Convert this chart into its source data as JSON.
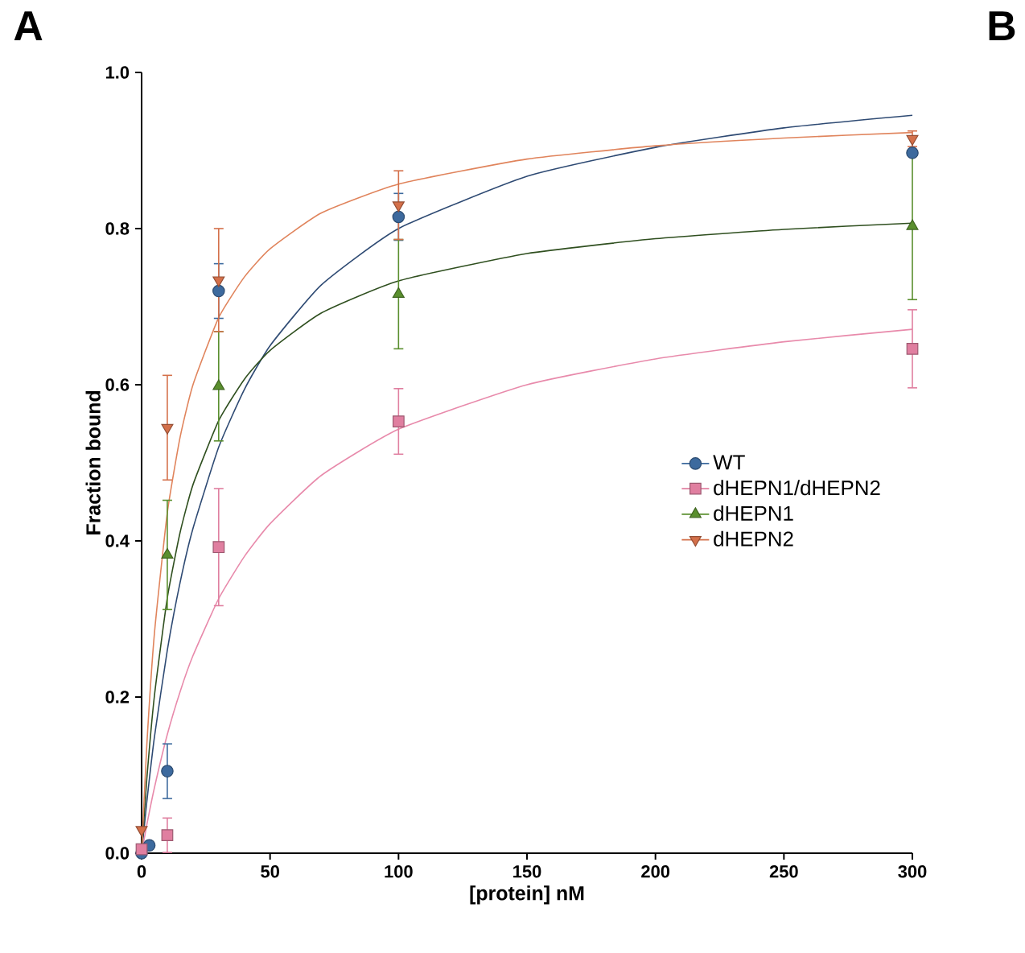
{
  "chart_data": {
    "type": "scatter",
    "xlabel": "[protein] nM",
    "ylabel": "Fraction bound",
    "xlim": [
      0,
      300
    ],
    "ylim": [
      0,
      1
    ],
    "xticks": [
      0,
      50,
      100,
      150,
      200,
      250,
      300
    ],
    "yticks": [
      {
        "value": 0,
        "label": "0.0"
      },
      {
        "value": 0.2,
        "label": "0.2"
      },
      {
        "value": 0.4,
        "label": "0.4"
      },
      {
        "value": 0.6,
        "label": "0.6"
      },
      {
        "value": 0.8,
        "label": "0.8"
      },
      {
        "value": 1,
        "label": "1.0"
      }
    ],
    "legend": "right",
    "annotations": [
      "A",
      "B"
    ],
    "series": [
      {
        "type": "line",
        "color": "#2e4a73",
        "marker": "none",
        "x": [
          0,
          2,
          5,
          10,
          15,
          20,
          30,
          40,
          50,
          70,
          100,
          150,
          200,
          250,
          300
        ],
        "values": [
          0,
          0.065,
          0.149,
          0.26,
          0.347,
          0.416,
          0.52,
          0.594,
          0.65,
          0.728,
          0.8,
          0.867,
          0.904,
          0.929,
          0.945
        ]
      },
      {
        "type": "line",
        "color": "#e88aab",
        "marker": "none",
        "x": [
          0,
          2,
          5,
          10,
          15,
          20,
          30,
          40,
          50,
          70,
          100,
          150,
          200,
          250,
          300
        ],
        "values": [
          0,
          0.036,
          0.084,
          0.152,
          0.207,
          0.253,
          0.326,
          0.38,
          0.422,
          0.484,
          0.543,
          0.6,
          0.633,
          0.655,
          0.671
        ]
      },
      {
        "type": "line",
        "color": "#2f4f1f",
        "marker": "none",
        "x": [
          0,
          2,
          5,
          10,
          15,
          20,
          30,
          40,
          50,
          70,
          100,
          150,
          200,
          250,
          300
        ],
        "values": [
          0,
          0.094,
          0.202,
          0.327,
          0.411,
          0.472,
          0.554,
          0.607,
          0.644,
          0.692,
          0.733,
          0.768,
          0.787,
          0.799,
          0.807
        ]
      },
      {
        "type": "line",
        "color": "#e0845c",
        "marker": "none",
        "x": [
          0,
          2,
          5,
          10,
          15,
          20,
          30,
          40,
          50,
          70,
          100,
          150,
          200,
          250,
          300
        ],
        "values": [
          0,
          0.137,
          0.282,
          0.436,
          0.533,
          0.6,
          0.686,
          0.738,
          0.774,
          0.82,
          0.857,
          0.889,
          0.906,
          0.916,
          0.923
        ]
      },
      {
        "name": "WT",
        "color": "#3d6a9e",
        "marker": "circle",
        "x": [
          0,
          3,
          10,
          30,
          100,
          300
        ],
        "values": [
          0,
          0.01,
          0.105,
          0.72,
          0.815,
          0.897
        ],
        "errors": [
          null,
          null,
          0.035,
          0.035,
          0.03,
          null
        ]
      },
      {
        "name": "dHEPN1/dHEPN2",
        "color": "#e07fa0",
        "marker": "square",
        "x": [
          0,
          10,
          30,
          100,
          300
        ],
        "values": [
          0.005,
          0.023,
          0.392,
          0.553,
          0.646
        ],
        "errors": [
          null,
          0.022,
          0.075,
          0.042,
          0.05
        ]
      },
      {
        "name": "dHEPN1",
        "color": "#5a8f2e",
        "marker": "triangle",
        "x": [
          10,
          30,
          100,
          300
        ],
        "values": [
          0.382,
          0.598,
          0.716,
          0.803
        ],
        "errors": [
          0.07,
          0.07,
          0.07,
          0.094
        ]
      },
      {
        "name": "dHEPN2",
        "color": "#d4704a",
        "marker": "triangle-down",
        "x": [
          0,
          10,
          30,
          100,
          300
        ],
        "values": [
          0.03,
          0.545,
          0.734,
          0.83,
          0.915
        ],
        "errors": [
          null,
          0.067,
          0.066,
          0.044,
          0.01
        ]
      }
    ]
  }
}
